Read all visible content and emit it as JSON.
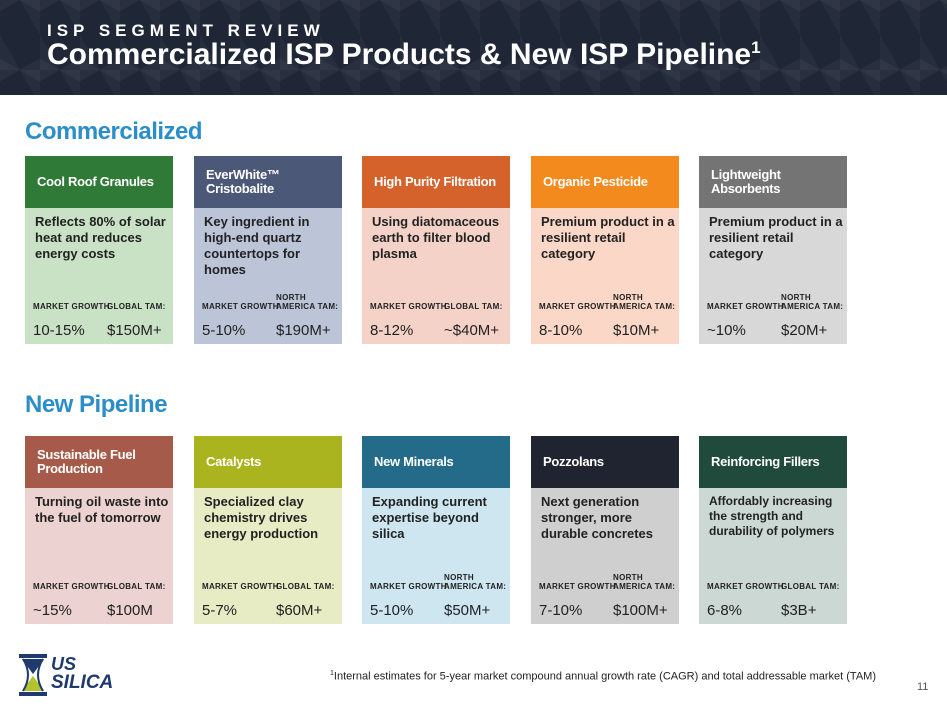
{
  "header": {
    "kicker": "ISP SEGMENT REVIEW",
    "title": "Commercialized ISP Products & New ISP Pipeline",
    "title_sup": "1"
  },
  "sections": {
    "commercialized": "Commercialized",
    "pipeline": "New Pipeline"
  },
  "commercialized": [
    {
      "name": "Cool Roof Granules",
      "desc": "Reflects 80% of solar heat and reduces energy costs",
      "growth_label": "MARKET GROWTH",
      "growth": "10-15%",
      "tam_label": "GLOBAL TAM:",
      "tam": "$150M+",
      "header_color": "#2f7a36",
      "body_color": "#c9e2c6"
    },
    {
      "name": "EverWhite™ Cristobalite",
      "desc": "Key ingredient in high-end quartz countertops for homes",
      "growth_label": "MARKET GROWTH",
      "growth": "5-10%",
      "tam_label": "NORTH AMERICA TAM:",
      "tam": "$190M+",
      "header_color": "#4c5877",
      "body_color": "#bcc4d8"
    },
    {
      "name": "High Purity Filtration",
      "desc": "Using diatomaceous earth to filter blood plasma",
      "growth_label": "MARKET GROWTH",
      "growth": "8-12%",
      "tam_label": "GLOBAL TAM:",
      "tam": "~$40M+",
      "header_color": "#d4622a",
      "body_color": "#f4d2c8"
    },
    {
      "name": "Organic Pesticide",
      "desc": "Premium product in a resilient retail category",
      "growth_label": "MARKET GROWTH",
      "growth": "8-10%",
      "tam_label": "NORTH AMERICA TAM:",
      "tam": "$10M+",
      "header_color": "#f28a1e",
      "body_color": "#fbd7c7"
    },
    {
      "name": "Lightweight Absorbents",
      "desc": "Premium product in a resilient retail category",
      "growth_label": "MARKET GROWTH",
      "growth": "~10%",
      "tam_label": "NORTH AMERICA TAM:",
      "tam": "$20M+",
      "header_color": "#747474",
      "body_color": "#d8d8d8"
    }
  ],
  "pipeline": [
    {
      "name": "Sustainable Fuel Production",
      "desc": "Turning oil waste into the fuel of tomorrow",
      "growth_label": "MARKET GROWTH",
      "growth": "~15%",
      "tam_label": "GLOBAL TAM:",
      "tam": "$100M",
      "header_color": "#a65a4a",
      "body_color": "#ecd2d0"
    },
    {
      "name": "Catalysts",
      "desc": "Specialized clay chemistry drives energy production",
      "growth_label": "MARKET GROWTH",
      "growth": "5-7%",
      "tam_label": "GLOBAL TAM:",
      "tam": "$60M+",
      "header_color": "#a9b41f",
      "body_color": "#e8ecc4"
    },
    {
      "name": "New Minerals",
      "desc": "Expanding current expertise beyond silica",
      "growth_label": "MARKET GROWTH",
      "growth": "5-10%",
      "tam_label": "NORTH AMERICA TAM:",
      "tam": "$50M+",
      "header_color": "#236b88",
      "body_color": "#cde6ef"
    },
    {
      "name": "Pozzolans",
      "desc": "Next generation stronger, more durable concretes",
      "growth_label": "MARKET GROWTH",
      "growth": "7-10%",
      "tam_label": "NORTH AMERICA TAM:",
      "tam": "$100M+",
      "header_color": "#1f2430",
      "body_color": "#cfcfcf"
    },
    {
      "name": "Reinforcing Fillers",
      "desc": "Affordably increasing the strength and durability of polymers",
      "growth_label": "MARKET GROWTH",
      "growth": "6-8%",
      "tam_label": "GLOBAL TAM:",
      "tam": "$3B+",
      "header_color": "#1f4a3c",
      "body_color": "#ccd8d3"
    }
  ],
  "footnote": {
    "sup": "1",
    "text": "Internal estimates for 5-year market compound annual growth rate (CAGR) and total addressable market (TAM)"
  },
  "page_number": "11",
  "logo": {
    "line1": "US",
    "line2": "SILICA"
  }
}
